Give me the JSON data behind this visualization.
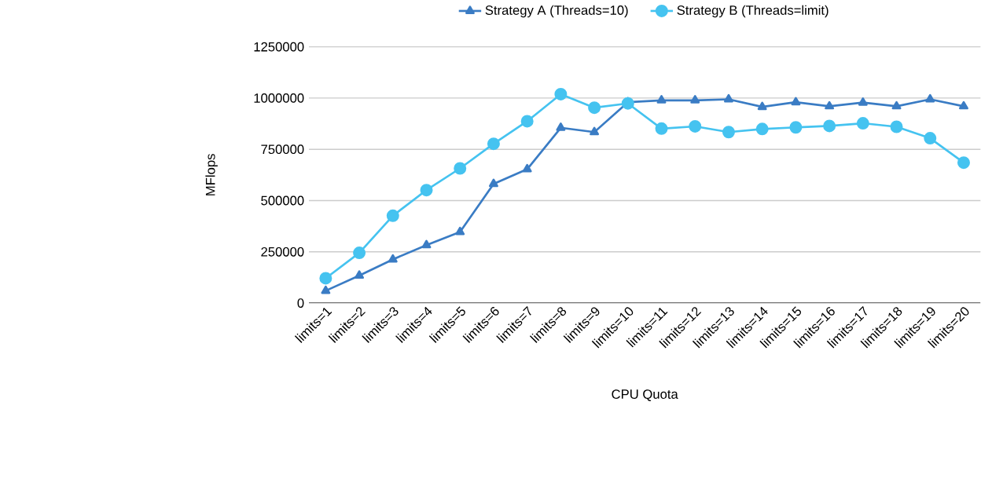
{
  "chart_data": {
    "type": "line",
    "xlabel": "CPU Quota",
    "ylabel": "MFlops",
    "categories": [
      "limits=1",
      "limits=2",
      "limits=3",
      "limits=4",
      "limits=5",
      "limits=6",
      "limits=7",
      "limits=8",
      "limits=9",
      "limits=10",
      "limits=11",
      "limits=12",
      "limits=13",
      "limits=14",
      "limits=15",
      "limits=16",
      "limits=17",
      "limits=18",
      "limits=19",
      "limits=20"
    ],
    "series": [
      {
        "name": "Strategy A (Threads=10)",
        "color": "#3a7cc4",
        "marker": "triangle",
        "values": [
          60000,
          134000,
          213000,
          283000,
          347000,
          581000,
          653000,
          855000,
          834000,
          980000,
          989000,
          989000,
          994000,
          957000,
          980000,
          960000,
          978000,
          960000,
          994000,
          960000
        ]
      },
      {
        "name": "Strategy B (Threads=limit)",
        "color": "#45c3f0",
        "marker": "circle",
        "values": [
          121000,
          245000,
          426000,
          551000,
          657000,
          777000,
          887000,
          1019000,
          953000,
          974000,
          851000,
          862000,
          834000,
          849000,
          857000,
          864000,
          877000,
          860000,
          804000,
          685000
        ]
      }
    ],
    "ylim": [
      0,
      1250000
    ],
    "yticks": [
      0,
      250000,
      500000,
      750000,
      1000000,
      1250000
    ],
    "grid": "y",
    "legend": "top"
  }
}
